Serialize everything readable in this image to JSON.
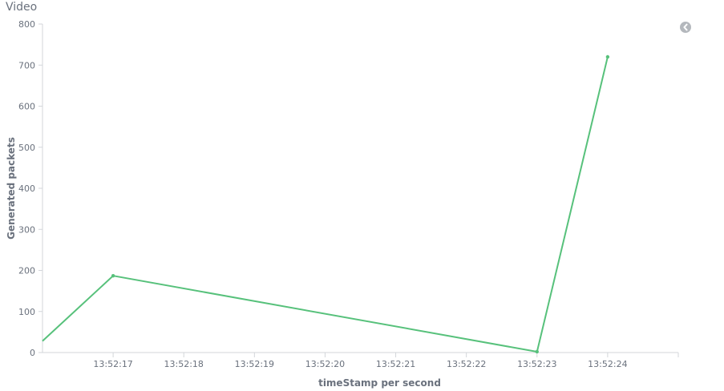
{
  "panel": {
    "title": "Video",
    "legend_toggle_icon": "chevron-left-circle-icon"
  },
  "chart_data": {
    "type": "line",
    "xlabel": "timeStamp per second",
    "ylabel": "Generated packets",
    "x_ticks": [
      "13:52:17",
      "13:52:18",
      "13:52:19",
      "13:52:20",
      "13:52:21",
      "13:52:22",
      "13:52:23",
      "13:52:24"
    ],
    "y_ticks": [
      0,
      100,
      200,
      300,
      400,
      500,
      600,
      700,
      800
    ],
    "ylim": [
      0,
      800
    ],
    "xlim": [
      "13:52:16",
      "13:52:25"
    ],
    "grid": false,
    "series": [
      {
        "color": "#57c17b",
        "points": [
          {
            "x": "13:52:16",
            "y": 28
          },
          {
            "x": "13:52:17",
            "y": 187
          },
          {
            "x": "13:52:23",
            "y": 2
          },
          {
            "x": "13:52:24",
            "y": 720
          }
        ]
      }
    ]
  }
}
